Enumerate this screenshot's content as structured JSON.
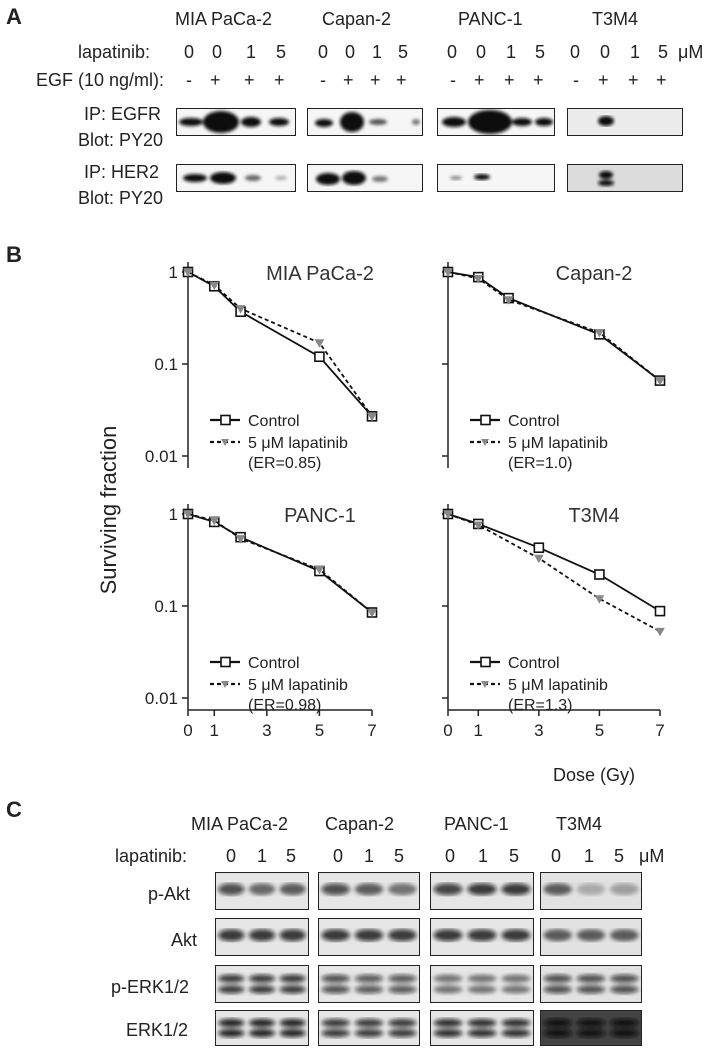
{
  "panel_a": {
    "letter": "A",
    "cell_lines": [
      "MIA PaCa-2",
      "Capan-2",
      "PANC-1",
      "T3M4"
    ],
    "lapatinib_label": "lapatinib:",
    "lapatinib_values": [
      "0",
      "0",
      "1",
      "5"
    ],
    "unit": "μM",
    "egf_label": "EGF (10 ng/ml):",
    "egf_values": [
      "-",
      "+",
      "+",
      "+"
    ],
    "row1_label_line1": "IP: EGFR",
    "row1_label_line2": "Blot: PY20",
    "row2_label_line1": "IP: HER2",
    "row2_label_line2": "Blot: PY20"
  },
  "panel_b": {
    "letter": "B",
    "y_axis_label": "Surviving fraction",
    "x_axis_label": "Dose (Gy)",
    "legend_control": "Control",
    "legend_lapatinib": "5 μM lapatinib",
    "colors": {
      "control": "#111111",
      "lapatinib": "#888888"
    }
  },
  "panel_c": {
    "letter": "C",
    "cell_lines": [
      "MIA PaCa-2",
      "Capan-2",
      "PANC-1",
      "T3M4"
    ],
    "lapatinib_label": "lapatinib:",
    "lapatinib_values": [
      "0",
      "1",
      "5"
    ],
    "unit": "μM",
    "rows": [
      "p-Akt",
      "Akt",
      "p-ERK1/2",
      "ERK1/2"
    ]
  },
  "chart_data": [
    {
      "type": "line",
      "title": "MIA PaCa-2",
      "xlabel": "Dose (Gy)",
      "ylabel": "Surviving fraction",
      "yscale": "log",
      "ylim": [
        0.005,
        1.3
      ],
      "xlim": [
        0,
        7
      ],
      "yticks": [
        "1",
        "0.1",
        "0.01"
      ],
      "xticks": [
        "0",
        "1",
        "3",
        "5",
        "7"
      ],
      "er": "(ER=0.85)",
      "series": [
        {
          "name": "Control",
          "x": [
            0,
            1,
            2,
            5,
            7
          ],
          "y": [
            1.0,
            0.7,
            0.37,
            0.12,
            0.027
          ]
        },
        {
          "name": "5 μM lapatinib",
          "x": [
            0,
            1,
            2,
            5,
            7
          ],
          "y": [
            1.0,
            0.72,
            0.4,
            0.17,
            0.027
          ]
        }
      ]
    },
    {
      "type": "line",
      "title": "Capan-2",
      "xlabel": "Dose (Gy)",
      "ylabel": "Surviving fraction",
      "yscale": "log",
      "ylim": [
        0.005,
        1.3
      ],
      "xlim": [
        0,
        7
      ],
      "er": "(ER=1.0)",
      "series": [
        {
          "name": "Control",
          "x": [
            0,
            1,
            2,
            5,
            7
          ],
          "y": [
            1.0,
            0.88,
            0.52,
            0.21,
            0.066
          ]
        },
        {
          "name": "5 μM lapatinib",
          "x": [
            0,
            1,
            2,
            5,
            7
          ],
          "y": [
            1.0,
            0.85,
            0.5,
            0.22,
            0.066
          ]
        }
      ]
    },
    {
      "type": "line",
      "title": "PANC-1",
      "xlabel": "Dose (Gy)",
      "ylabel": "Surviving fraction",
      "yscale": "log",
      "ylim": [
        0.005,
        1.3
      ],
      "xlim": [
        0,
        7
      ],
      "er": "(ER=0.98)",
      "series": [
        {
          "name": "Control",
          "x": [
            0,
            1,
            2,
            5,
            7
          ],
          "y": [
            1.0,
            0.82,
            0.56,
            0.24,
            0.085
          ]
        },
        {
          "name": "5 μM lapatinib",
          "x": [
            0,
            1,
            2,
            5,
            7
          ],
          "y": [
            1.0,
            0.85,
            0.54,
            0.25,
            0.085
          ]
        }
      ]
    },
    {
      "type": "line",
      "title": "T3M4",
      "xlabel": "Dose (Gy)",
      "ylabel": "Surviving fraction",
      "yscale": "log",
      "ylim": [
        0.005,
        1.3
      ],
      "xlim": [
        0,
        7
      ],
      "er": "(ER=1.3)",
      "series": [
        {
          "name": "Control",
          "x": [
            0,
            1,
            3,
            5,
            7
          ],
          "y": [
            1.0,
            0.78,
            0.43,
            0.22,
            0.088
          ]
        },
        {
          "name": "5 μM lapatinib",
          "x": [
            0,
            1,
            3,
            5,
            7
          ],
          "y": [
            1.0,
            0.76,
            0.33,
            0.12,
            0.053
          ]
        }
      ]
    }
  ]
}
